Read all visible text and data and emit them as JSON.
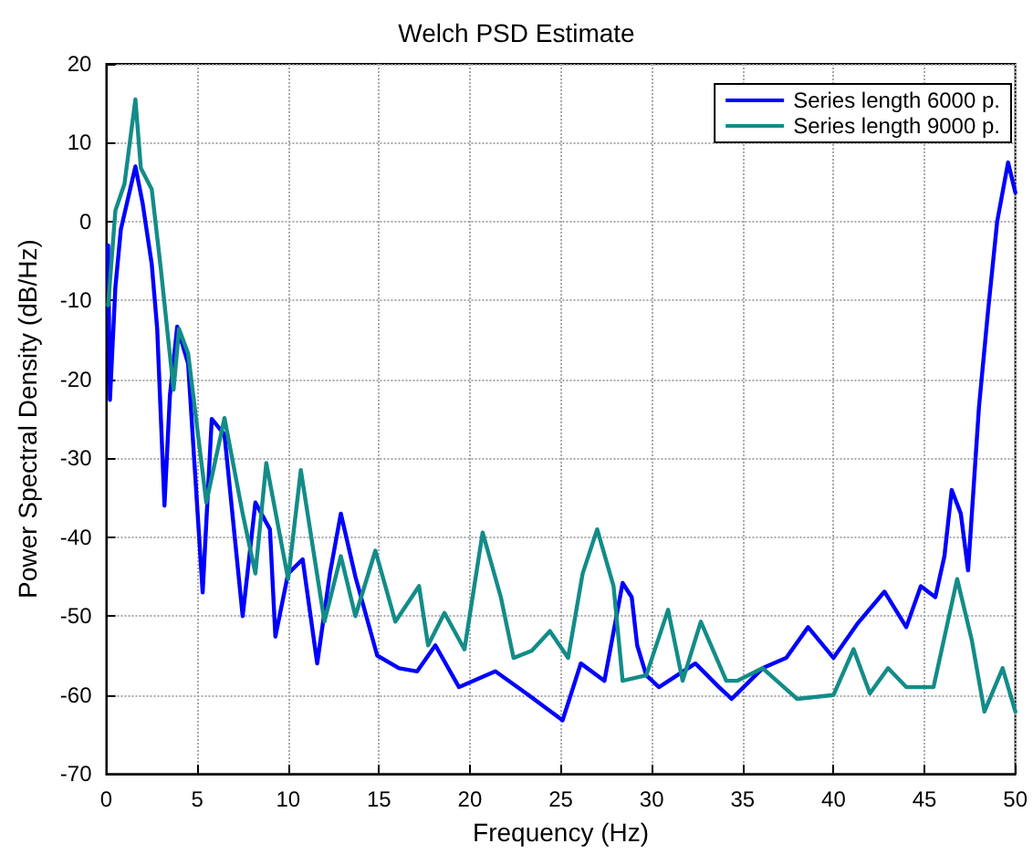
{
  "chart_data": {
    "type": "line",
    "title": "Welch PSD Estimate",
    "xlabel": "Frequency (Hz)",
    "ylabel": "Power Spectral Density (dB/Hz)",
    "xlim": [
      0,
      50
    ],
    "xticks": [
      0,
      5,
      10,
      15,
      20,
      25,
      30,
      35,
      40,
      45,
      50
    ],
    "ylim": [
      -70,
      20
    ],
    "yticks": [
      -70,
      -60,
      -50,
      -40,
      -30,
      -20,
      -10,
      0,
      10,
      20
    ],
    "grid": true,
    "legend": "top right",
    "line_style": "solid",
    "series": [
      {
        "name": "Series length 6000 p.",
        "color": "#0000ff",
        "x": [
          0.1,
          0.2,
          0.5,
          0.8,
          1.6,
          2,
          2.5,
          2.8,
          3.2,
          3.5,
          3.9,
          4.5,
          5.3,
          5.8,
          6.5,
          7.5,
          8.2,
          9,
          9.3,
          10,
          10.8,
          11.6,
          12.3,
          12.9,
          13.7,
          14.9,
          16.1,
          17.1,
          18.1,
          19.4,
          21.4,
          23.1,
          25.1,
          26.1,
          27.4,
          28.4,
          28.9,
          29.2,
          29.7,
          30.4,
          31.4,
          32.4,
          33.7,
          34.4,
          36.1,
          37.4,
          38.6,
          40,
          41.3,
          42.8,
          44,
          44.8,
          45.6,
          46.1,
          46.5,
          47,
          47.4,
          48,
          48.5,
          49,
          49.6,
          50
        ],
        "values": [
          -3,
          -22.6,
          -8.3,
          -1,
          7,
          2.3,
          -5.4,
          -13.6,
          -36,
          -22,
          -13.3,
          -18,
          -47,
          -25,
          -27,
          -50,
          -35.6,
          -39,
          -52.6,
          -44.6,
          -42.8,
          -56,
          -44.6,
          -37,
          -45,
          -55,
          -56.6,
          -57,
          -53.7,
          -59,
          -57,
          -59.8,
          -63.2,
          -56,
          -58.2,
          -45.8,
          -47.6,
          -53.7,
          -57.5,
          -59,
          -57.5,
          -56,
          -59,
          -60.5,
          -56.6,
          -55.3,
          -51.4,
          -55.3,
          -51,
          -46.9,
          -51.4,
          -46.2,
          -47.6,
          -42.4,
          -34,
          -37,
          -44.2,
          -23.5,
          -11.3,
          0,
          7.5,
          3.7
        ]
      },
      {
        "name": "Series length 9000 p.",
        "color": "#138c88",
        "x": [
          0.1,
          0.5,
          1,
          1.6,
          1.9,
          2.5,
          3,
          3.7,
          4,
          4.5,
          5.5,
          6.5,
          7.5,
          8.2,
          8.8,
          10,
          10.7,
          12,
          12.9,
          13.7,
          14.8,
          15.9,
          17.2,
          17.7,
          18.6,
          19.7,
          20.7,
          21.7,
          22.4,
          23.4,
          24.4,
          25.4,
          26.2,
          27,
          27.9,
          28.4,
          29.7,
          30.9,
          31.7,
          32.7,
          34.1,
          34.7,
          36.1,
          38,
          40,
          41.1,
          42,
          43,
          44,
          45.5,
          46.8,
          47.6,
          48.3,
          49.3,
          50
        ],
        "values": [
          -10.6,
          1.4,
          4.8,
          15.5,
          6.8,
          4.1,
          -6,
          -21.3,
          -13.6,
          -16.7,
          -35.6,
          -24.9,
          -37,
          -44.6,
          -30.6,
          -45.3,
          -31.5,
          -50.7,
          -42.4,
          -50,
          -41.7,
          -50.7,
          -46.2,
          -53.7,
          -49.6,
          -54.2,
          -39.4,
          -47.6,
          -55.3,
          -54.4,
          -51.9,
          -55.3,
          -44.6,
          -39,
          -46.2,
          -58.2,
          -57.5,
          -49.2,
          -58.2,
          -50.7,
          -58.2,
          -58.2,
          -56.6,
          -60.5,
          -60,
          -54.2,
          -59.8,
          -56.6,
          -59,
          -59,
          -45.3,
          -53,
          -62.1,
          -56.6,
          -62.1
        ]
      }
    ]
  }
}
